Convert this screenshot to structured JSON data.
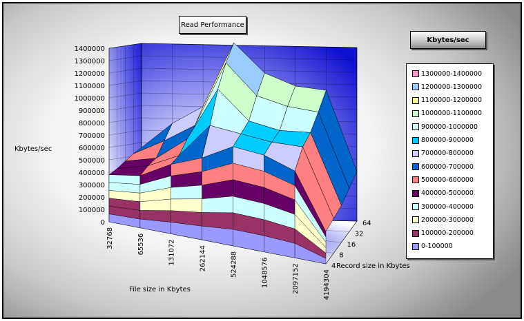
{
  "chart_data": {
    "type": "surface",
    "title": "Read Performance",
    "zlabel": "Kbytes/sec",
    "xlabel": "File size in Kbytes",
    "ylabel": "Record size in Kbytes",
    "legend_title": "Kbytes/sec",
    "legend_position": "right",
    "zlim": [
      0,
      1400000
    ],
    "z_ticks": [
      "0",
      "100000",
      "200000",
      "300000",
      "400000",
      "500000",
      "600000",
      "700000",
      "800000",
      "900000",
      "1000000",
      "1100000",
      "1200000",
      "1300000",
      "1400000"
    ],
    "x_ticks": [
      "32768",
      "65536",
      "131072",
      "262144",
      "524288",
      "1048576",
      "2097152",
      "4194304"
    ],
    "y_ticks": [
      "4",
      "8",
      "16",
      "32",
      "64"
    ],
    "grid": true,
    "bands": [
      {
        "label": "1300000-1400000",
        "color": "#ff99cc"
      },
      {
        "label": "1200000-1300000",
        "color": "#99ccff"
      },
      {
        "label": "1100000-1200000",
        "color": "#ffff99"
      },
      {
        "label": "1000000-1100000",
        "color": "#ccffcc"
      },
      {
        "label": "900000-1000000",
        "color": "#ccffff"
      },
      {
        "label": "800000-900000",
        "color": "#00ccff"
      },
      {
        "label": "700000-800000",
        "color": "#ccccff"
      },
      {
        "label": "600000-700000",
        "color": "#0066cc"
      },
      {
        "label": "500000-600000",
        "color": "#ff8080"
      },
      {
        "label": "400000-500000",
        "color": "#660066"
      },
      {
        "label": "300000-400000",
        "color": "#ccffff"
      },
      {
        "label": "200000-300000",
        "color": "#ffffcc"
      },
      {
        "label": "100000-200000",
        "color": "#993366"
      },
      {
        "label": "0-100000",
        "color": "#9999ff"
      }
    ],
    "series": [
      {
        "name": "4",
        "values": [
          380000,
          420000,
          560000,
          660000,
          800000,
          780000,
          700000,
          260000
        ]
      },
      {
        "name": "8",
        "values": [
          420000,
          480000,
          600000,
          880000,
          850000,
          820000,
          820000,
          280000
        ]
      },
      {
        "name": "16",
        "values": [
          470000,
          520000,
          700000,
          1130000,
          900000,
          850000,
          860000,
          300000
        ]
      },
      {
        "name": "32",
        "values": [
          520000,
          640000,
          780000,
          1300000,
          1050000,
          980000,
          950000,
          350000
        ]
      },
      {
        "name": "64",
        "values": [
          560000,
          760000,
          900000,
          1420000,
          1180000,
          1080000,
          1050000,
          400000
        ]
      }
    ]
  }
}
